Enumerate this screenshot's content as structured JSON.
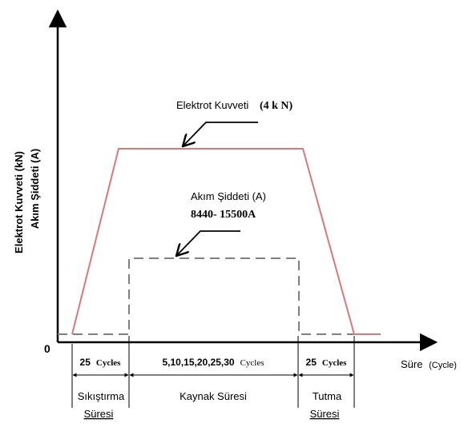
{
  "axes": {
    "y_label_line1": "Elektrot Kuvveti (kN)",
    "y_label_line2": "Akım Şiddeti (A)",
    "origin_label": "0",
    "x_label": "Süre",
    "x_unit": "(Cycle)"
  },
  "force_annotation": {
    "label": "Elektrot Kuvveti",
    "value": "(4 k N)"
  },
  "current_annotation": {
    "label": "Akım Şiddeti (A)",
    "range": "8440- 15500A"
  },
  "durations": {
    "squeeze_cycles": "25",
    "weld_cycles": "5,10,15,20,25,30",
    "hold_cycles": "25",
    "cycles_word": "Cycles"
  },
  "phases": {
    "squeeze_line1": "Sıkıştırma",
    "squeeze_line2": "Süresi",
    "weld": "Kaynak Süresi",
    "hold_line1": "Tutma",
    "hold_line2": "Süresi"
  },
  "colors": {
    "force_line": "#d9787a",
    "current_line": "#808080",
    "axis": "#000000",
    "arrow": "#000000"
  }
}
